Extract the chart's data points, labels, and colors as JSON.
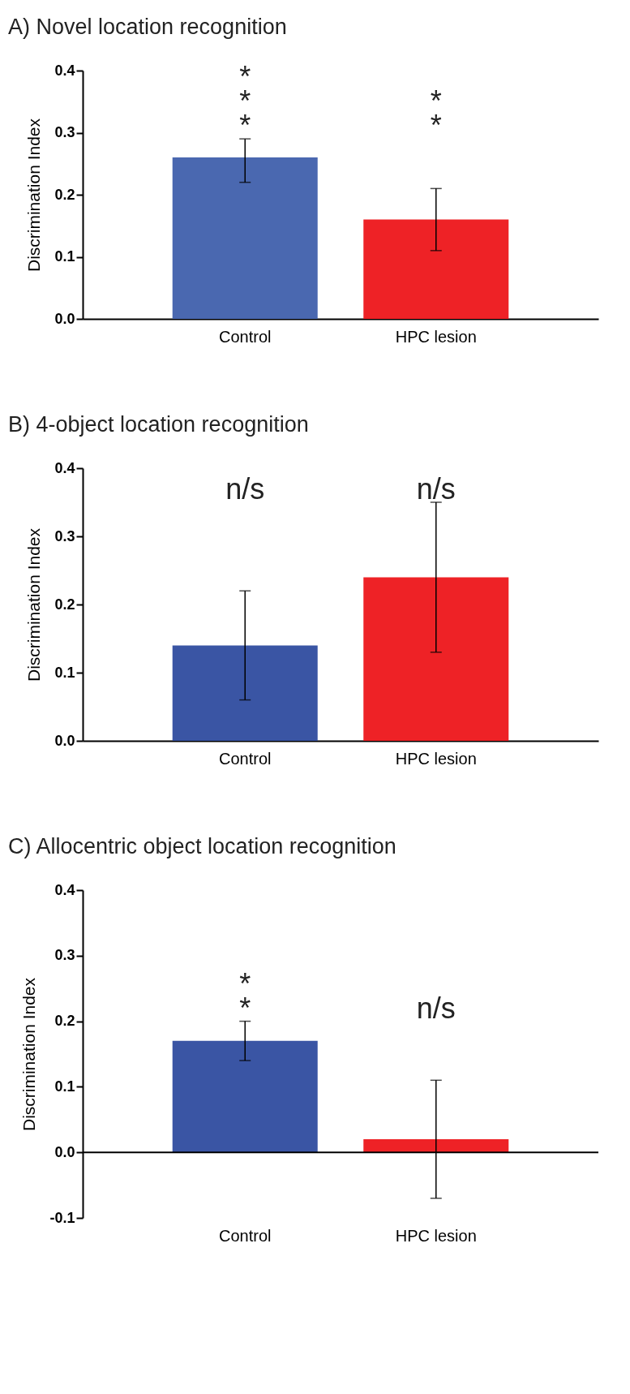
{
  "chart_data": [
    {
      "type": "bar",
      "title": "A) Novel location recognition",
      "ylabel": "Discrimination Index",
      "categories": [
        "Control",
        "HPC lesion"
      ],
      "values": [
        0.26,
        0.16
      ],
      "colors": [
        "#4a68b0",
        "#ee2226"
      ],
      "errors": [
        [
          0.22,
          0.29
        ],
        [
          0.11,
          0.21
        ]
      ],
      "ylim": [
        0,
        0.4
      ],
      "yticks": [
        {
          "value": 0,
          "label": "0.0"
        },
        {
          "value": 0.1,
          "label": "0.1"
        },
        {
          "value": 0.2,
          "label": "0.2"
        },
        {
          "value": 0.3,
          "label": "0.3"
        },
        {
          "value": 0.4,
          "label": "0.4"
        }
      ],
      "annotations": [
        "*\n*\n*",
        "*\n*"
      ]
    },
    {
      "type": "bar",
      "title": "B) 4-object location recognition",
      "ylabel": "Discrimination Index",
      "categories": [
        "Control",
        "HPC lesion"
      ],
      "values": [
        0.14,
        0.24
      ],
      "colors": [
        "#3a55a4",
        "#ee2226"
      ],
      "errors": [
        [
          0.06,
          0.22
        ],
        [
          0.13,
          0.35
        ]
      ],
      "ylim": [
        0,
        0.4
      ],
      "yticks": [
        {
          "value": 0,
          "label": "0.0"
        },
        {
          "value": 0.1,
          "label": "0.1"
        },
        {
          "value": 0.2,
          "label": "0.2"
        },
        {
          "value": 0.3,
          "label": "0.3"
        },
        {
          "value": 0.4,
          "label": "0.4"
        }
      ],
      "annotations": [
        "n/s",
        "n/s"
      ]
    },
    {
      "type": "bar",
      "title": "C) Allocentric object location recognition",
      "ylabel": "Discrimination Index",
      "categories": [
        "Control",
        "HPC lesion"
      ],
      "values": [
        0.17,
        0.02
      ],
      "colors": [
        "#3a55a4",
        "#ee2226"
      ],
      "errors": [
        [
          0.14,
          0.2
        ],
        [
          -0.07,
          0.11
        ]
      ],
      "ylim": [
        -0.1,
        0.4
      ],
      "yticks": [
        {
          "value": -0.1,
          "label": "-0.1"
        },
        {
          "value": 0,
          "label": "0.0"
        },
        {
          "value": 0.1,
          "label": "0.1"
        },
        {
          "value": 0.2,
          "label": "0.2"
        },
        {
          "value": 0.3,
          "label": "0.3"
        },
        {
          "value": 0.4,
          "label": "0.4"
        }
      ],
      "ref_lines": [
        {
          "axis": "y",
          "value": 0
        }
      ],
      "annotations": [
        "*\n*",
        "n/s"
      ]
    }
  ]
}
